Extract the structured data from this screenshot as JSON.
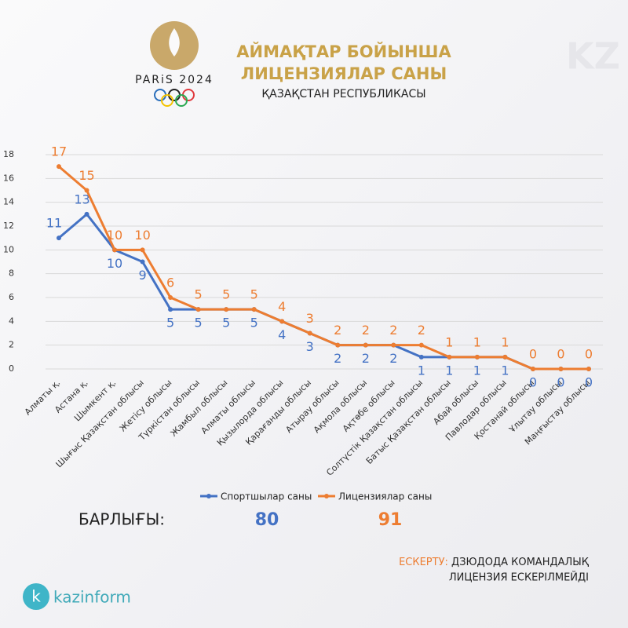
{
  "header": {
    "logo_text": "PARiS 2024",
    "watermark": "KZ"
  },
  "chart_data": {
    "type": "line",
    "title": [
      "АЙМАҚТАР БОЙЫНША",
      "ЛИЦЕНЗИЯЛАР САНЫ"
    ],
    "subtitle": "ҚАЗАҚСТАН РЕСПУБЛИКАСЫ",
    "categories": [
      "Алматы қ.",
      "Астана қ.",
      "Шымкент қ.",
      "Шығыс Қазақстан облысы",
      "Жетісу облысы",
      "Түркістан облысы",
      "Жамбыл облысы",
      "Алматы облысы",
      "Қызылорда облысы",
      "Қарағанды облысы",
      "Атырау облысы",
      "Ақмола облысы",
      "Ақтөбе облысы",
      "Солтүстік Қазақстан облысы",
      "Батыс Қазақстан облысы",
      "Абай облысы",
      "Павлодар облысы",
      "Қостанай облысы",
      "Ұлытау облысы",
      "Маңғыстау облысы"
    ],
    "series": [
      {
        "name": "Спортшылар саны",
        "color": "#4472c4",
        "values": [
          11,
          13,
          10,
          9,
          5,
          5,
          5,
          5,
          4,
          3,
          2,
          2,
          2,
          1,
          1,
          1,
          1,
          0,
          0,
          0
        ]
      },
      {
        "name": "Лицензиялар саны",
        "color": "#ed7d31",
        "values": [
          17,
          15,
          10,
          10,
          6,
          5,
          5,
          5,
          4,
          3,
          2,
          2,
          2,
          2,
          1,
          1,
          1,
          0,
          0,
          0
        ]
      }
    ],
    "ylim": [
      0,
      18
    ],
    "yticks": [
      0,
      2,
      4,
      6,
      8,
      10,
      12,
      14,
      16,
      18
    ],
    "grid": true,
    "legend": "bottom"
  },
  "totals": {
    "label": "БАРЛЫҒЫ:",
    "values": [
      80,
      91
    ]
  },
  "note": {
    "label": "ЕСКЕРТУ:",
    "lines": [
      "ДЗЮДОДА КОМАНДАЛЫҚ",
      "ЛИЦЕНЗИЯ ЕСКЕРІЛМЕЙДІ"
    ]
  },
  "footer": {
    "brand": "kazinform"
  }
}
